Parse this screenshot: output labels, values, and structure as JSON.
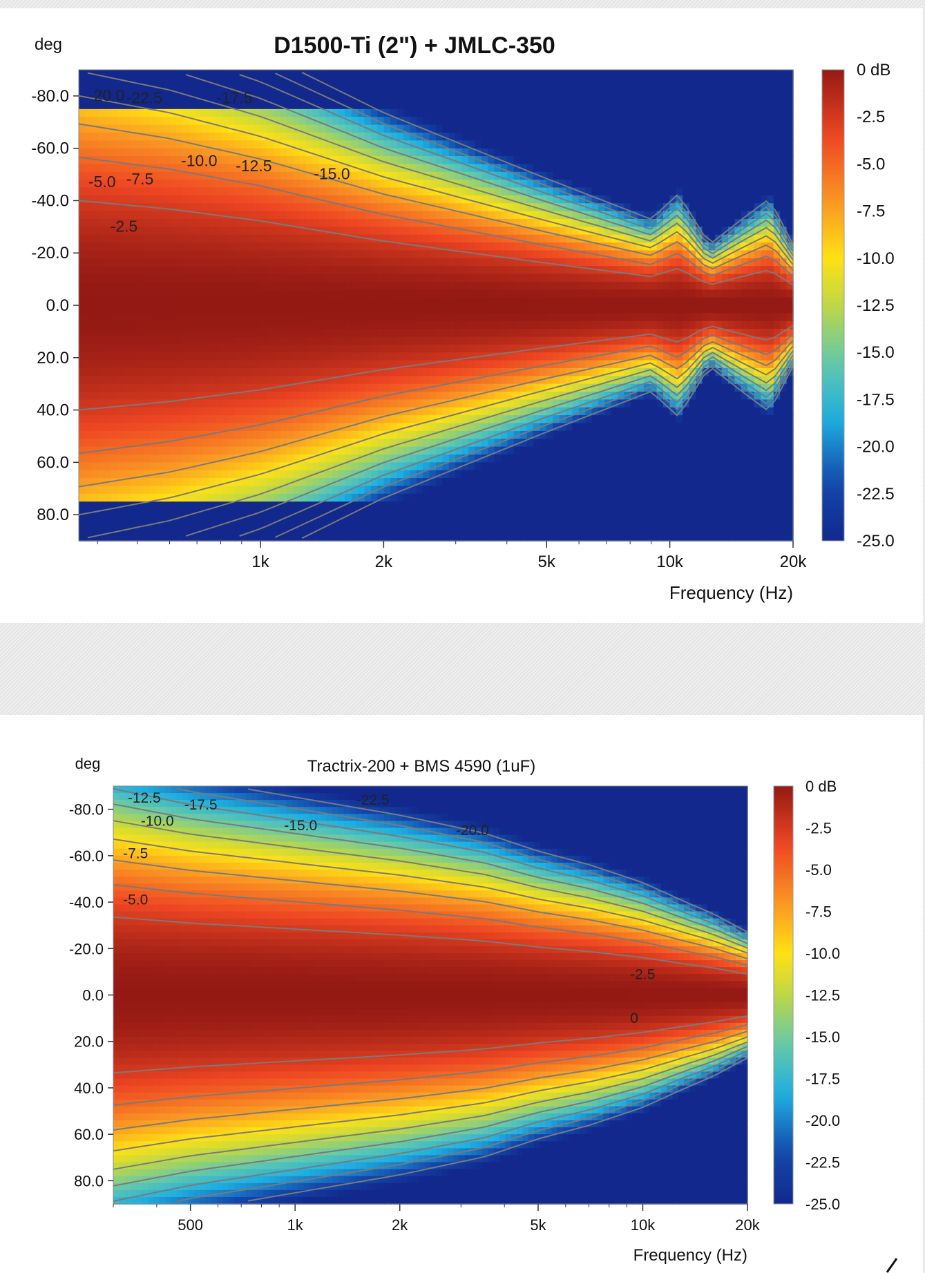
{
  "charts": [
    {
      "title": "D1500-Ti (2\") + JMLC-350",
      "y_unit_label": "deg",
      "x_label": "Frequency (Hz)",
      "x_ticks": [
        "1k",
        "2k",
        "5k",
        "10k",
        "20k"
      ],
      "y_ticks": [
        "-80.0",
        "-60.0",
        "-40.0",
        "-20.0",
        "0.0",
        "20.0",
        "40.0",
        "60.0",
        "80.0"
      ],
      "colorbar_labels": [
        "0 dB",
        "-2.5",
        "-5.0",
        "-7.5",
        "-10.0",
        "-12.5",
        "-15.0",
        "-17.5",
        "-20.0",
        "-22.5",
        "-25.0"
      ],
      "contour_labels": [
        "-20.0",
        "-22.5",
        "-17.5",
        "-10.0",
        "-12.5",
        "-15.0",
        "-5.0",
        "-7.5",
        "-2.5"
      ]
    },
    {
      "title": "Tractrix-200 + BMS 4590 (1uF)",
      "y_unit_label": "deg",
      "x_label": "Frequency (Hz)",
      "x_ticks": [
        "500",
        "1k",
        "2k",
        "5k",
        "10k",
        "20k"
      ],
      "y_ticks": [
        "-80.0",
        "-60.0",
        "-40.0",
        "-20.0",
        "0.0",
        "20.0",
        "40.0",
        "60.0",
        "80.0"
      ],
      "colorbar_labels": [
        "0 dB",
        "-2.5",
        "-5.0",
        "-7.5",
        "-10.0",
        "-12.5",
        "-15.0",
        "-17.5",
        "-20.0",
        "-22.5",
        "-25.0"
      ],
      "contour_labels": [
        "-12.5",
        "-17.5",
        "-22.5",
        "-10.0",
        "-15.0",
        "-20.0",
        "-7.5",
        "-5.0",
        "-2.5",
        "0"
      ]
    }
  ],
  "chart_data": [
    {
      "type": "heatmap",
      "title": "D1500-Ti (2\") + JMLC-350",
      "xlabel": "Frequency (Hz)",
      "ylabel": "deg",
      "x_scale": "log",
      "xlim": [
        360,
        20000
      ],
      "ylim": [
        -90,
        90
      ],
      "x_ticks": [
        1000,
        2000,
        5000,
        10000,
        20000
      ],
      "y_ticks": [
        -80,
        -60,
        -40,
        -20,
        0,
        20,
        40,
        60,
        80
      ],
      "z_range_db": [
        -25,
        0
      ],
      "beamwidth_cutoff_deg": 76,
      "contour_levels_db": [
        -2.5,
        -5,
        -7.5,
        -10,
        -12.5,
        -15,
        -17.5,
        -20,
        -22.5
      ],
      "contour_db_labels": [
        -20,
        -22.5,
        -17.5,
        -10,
        -12.5,
        -15,
        -5,
        -7.5,
        -2.5
      ],
      "half_width_deg_at_-6dB": {
        "freq_hz": [
          360,
          600,
          1000,
          2000,
          5000,
          9000,
          10500,
          12500,
          15000,
          17500,
          20000
        ],
        "deg": [
          62,
          57,
          50,
          38,
          25,
          17,
          22,
          12,
          17,
          21,
          12
        ]
      }
    },
    {
      "type": "heatmap",
      "title": "Tractrix-200 + BMS 4590 (1uF)",
      "xlabel": "Frequency (Hz)",
      "ylabel": "deg",
      "x_scale": "log",
      "xlim": [
        300,
        20000
      ],
      "ylim": [
        -90,
        90
      ],
      "x_ticks": [
        500,
        1000,
        2000,
        5000,
        10000,
        20000
      ],
      "y_ticks": [
        -80,
        -60,
        -40,
        -20,
        0,
        20,
        40,
        60,
        80
      ],
      "z_range_db": [
        -25,
        0
      ],
      "contour_levels_db": [
        -2.5,
        -5,
        -7.5,
        -10,
        -12.5,
        -15,
        -17.5,
        -20,
        -22.5
      ],
      "contour_db_labels": [
        -12.5,
        -17.5,
        -22.5,
        -10,
        -15,
        -20,
        -7.5,
        -5,
        -2.5,
        0
      ],
      "half_width_deg_at_-6dB": {
        "freq_hz": [
          300,
          500,
          1000,
          2000,
          3500,
          5000,
          7000,
          10000,
          13000,
          16000,
          20000
        ],
        "deg": [
          52,
          48,
          44,
          40,
          36,
          32,
          29,
          25,
          21,
          18,
          14
        ]
      }
    }
  ]
}
